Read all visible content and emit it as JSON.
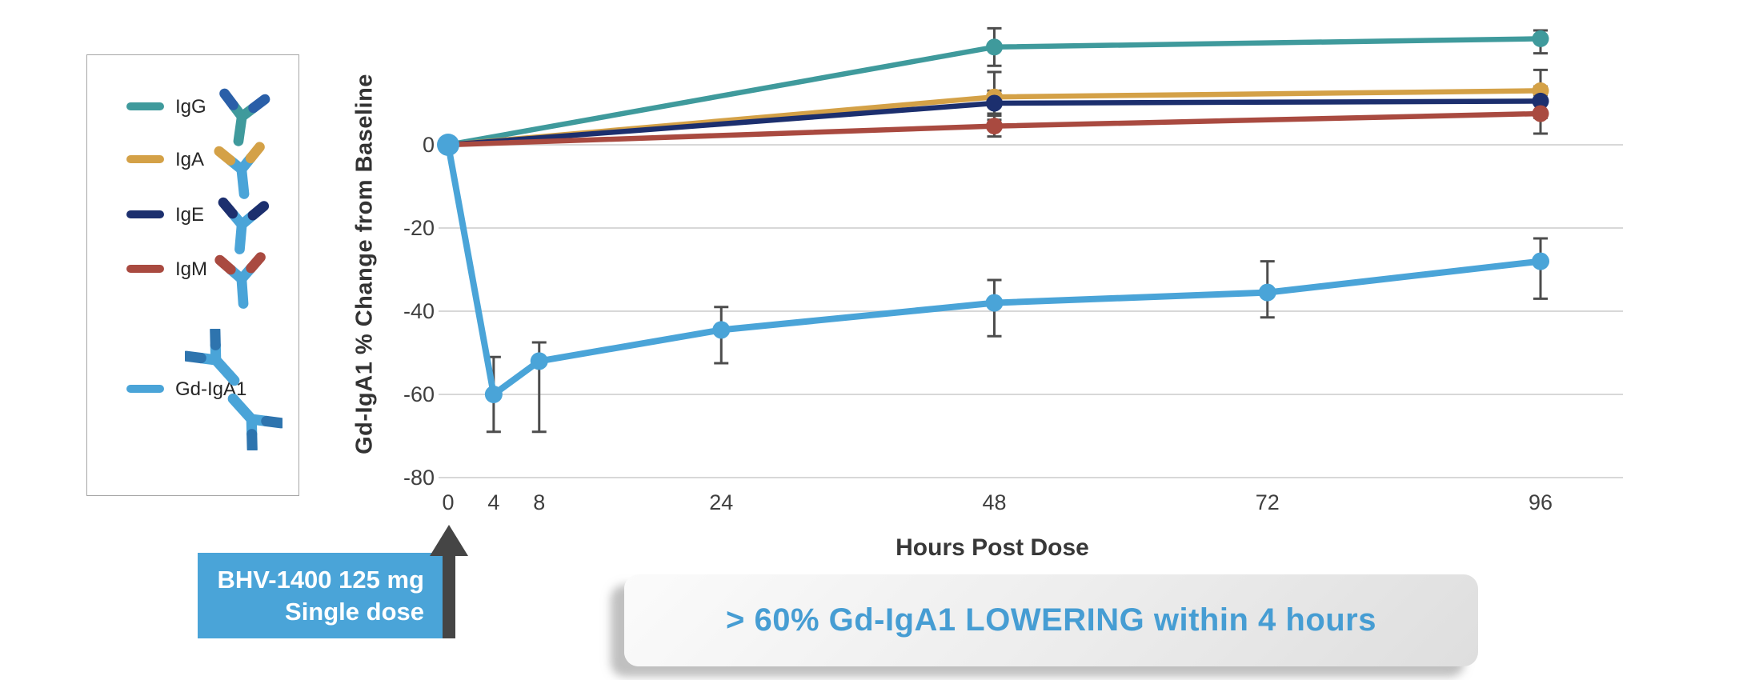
{
  "legend": {
    "items": [
      {
        "label": "IgG",
        "color": "#3f9a9c",
        "icon": "igg-antibody",
        "icon_colors": {
          "outer": "#2a5fa8",
          "core": "#3f9a9c"
        }
      },
      {
        "label": "IgA",
        "color": "#d4a147",
        "icon": "iga-antibody",
        "icon_colors": {
          "outer": "#d4a147",
          "core": "#4aa4d8"
        }
      },
      {
        "label": "IgE",
        "color": "#1c2f6e",
        "icon": "ige-antibody",
        "icon_colors": {
          "outer": "#1c2f6e",
          "core": "#4aa4d8"
        }
      },
      {
        "label": "IgM",
        "color": "#a94a40",
        "icon": "igm-antibody",
        "icon_colors": {
          "outer": "#a94a40",
          "core": "#4aa4d8"
        }
      },
      {
        "label": "Gd-IgA1",
        "color": "#4aa4d8",
        "icon": "gd-iga1-antibody",
        "icon_colors": {
          "outer": "#2e74ae",
          "core": "#4aa4d8"
        }
      }
    ]
  },
  "chart_data": {
    "type": "line",
    "xlabel": "Hours Post Dose",
    "ylabel": "Gd-IgA1 % Change from Baseline",
    "x_ticks": [
      0,
      4,
      8,
      24,
      48,
      72,
      96
    ],
    "y_ticks": [
      0,
      -20,
      -40,
      -60,
      -80
    ],
    "xlim": [
      0,
      96
    ],
    "ylim": [
      -80,
      30
    ],
    "grid": "horizontal-only",
    "error_bar_color": "#4d4d4d",
    "legend_position": "left-panel",
    "series": [
      {
        "name": "IgG",
        "color": "#3f9a9c",
        "x": [
          0,
          48,
          96
        ],
        "y": [
          0,
          23.5,
          25.5
        ],
        "err_lo": [
          null,
          19,
          22
        ],
        "err_hi": [
          null,
          28,
          27.5
        ]
      },
      {
        "name": "IgA",
        "color": "#d4a147",
        "x": [
          0,
          48,
          96
        ],
        "y": [
          0,
          11.5,
          13
        ],
        "err_lo": [
          null,
          6,
          8
        ],
        "err_hi": [
          null,
          17.5,
          18
        ]
      },
      {
        "name": "IgE",
        "color": "#1c2f6e",
        "x": [
          0,
          48,
          96
        ],
        "y": [
          0,
          10,
          10.5
        ],
        "err_lo": [
          null,
          7,
          6.5
        ],
        "err_hi": [
          null,
          13,
          14
        ]
      },
      {
        "name": "IgM",
        "color": "#a94a40",
        "x": [
          0,
          48,
          96
        ],
        "y": [
          0,
          4.5,
          7.5
        ],
        "err_lo": [
          null,
          2,
          2.7
        ],
        "err_hi": [
          null,
          7.5,
          12
        ]
      },
      {
        "name": "Gd-IgA1",
        "color": "#4aa4d8",
        "x": [
          0,
          4,
          8,
          24,
          48,
          72,
          96
        ],
        "y": [
          0,
          -60,
          -52,
          -44.5,
          -38,
          -35.5,
          -28
        ],
        "err_lo": [
          null,
          -69,
          -69,
          -52.5,
          -46,
          -41.5,
          -37
        ],
        "err_hi": [
          null,
          -51,
          -47.5,
          -39,
          -32.5,
          -28,
          -22.5
        ]
      }
    ]
  },
  "dose_callout": {
    "line1": "BHV-1400 125 mg",
    "line2": "Single dose",
    "bg_color": "#4aa4d8",
    "arrow_color": "#454545"
  },
  "banner": {
    "text": "> 60% Gd-IgA1 LOWERING within 4 hours",
    "text_color": "#469dd3"
  }
}
